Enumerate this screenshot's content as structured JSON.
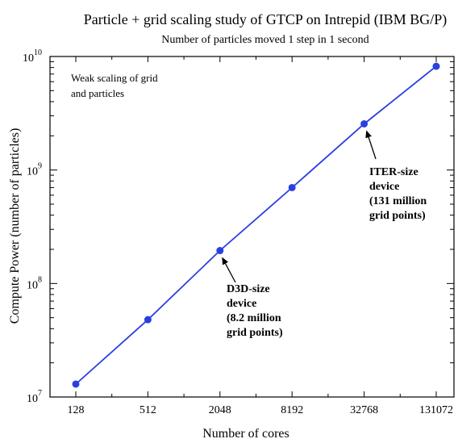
{
  "chart_data": {
    "type": "line",
    "title": "Particle + grid scaling study of GTCP on Intrepid (IBM BG/P)",
    "subtitle": "Number of particles moved 1 step in 1 second",
    "xlabel": "Number of cores",
    "ylabel": "Compute Power (number of particles)",
    "xscale": "log2",
    "yscale": "log10",
    "x_ticks": [
      "128",
      "512",
      "2048",
      "8192",
      "32768",
      "131072"
    ],
    "y_ticks": [
      {
        "base": "10",
        "exp": "7",
        "value": 10000000
      },
      {
        "base": "10",
        "exp": "8",
        "value": 100000000
      },
      {
        "base": "10",
        "exp": "9",
        "value": 1000000000
      },
      {
        "base": "10",
        "exp": "10",
        "value": 10000000000
      }
    ],
    "xlim": [
      128,
      131072
    ],
    "ylim": [
      10000000,
      10000000000
    ],
    "series_color": "#2a3fe0",
    "series": [
      {
        "x": [
          128,
          512,
          2048,
          8192,
          32768,
          131072
        ],
        "values": [
          13000000,
          48000000,
          195000000,
          700000000,
          2550000000,
          8200000000
        ]
      }
    ],
    "note_lines": [
      "Weak scaling of grid",
      "and particles"
    ],
    "annotations": [
      {
        "target_x": 2048,
        "target_y": 195000000,
        "lines": [
          "D3D-size",
          "device",
          "(8.2 million",
          "grid points)"
        ]
      },
      {
        "target_x": 32768,
        "target_y": 2550000000,
        "lines": [
          "ITER-size",
          "device",
          "(131 million",
          "grid points)"
        ]
      }
    ]
  }
}
